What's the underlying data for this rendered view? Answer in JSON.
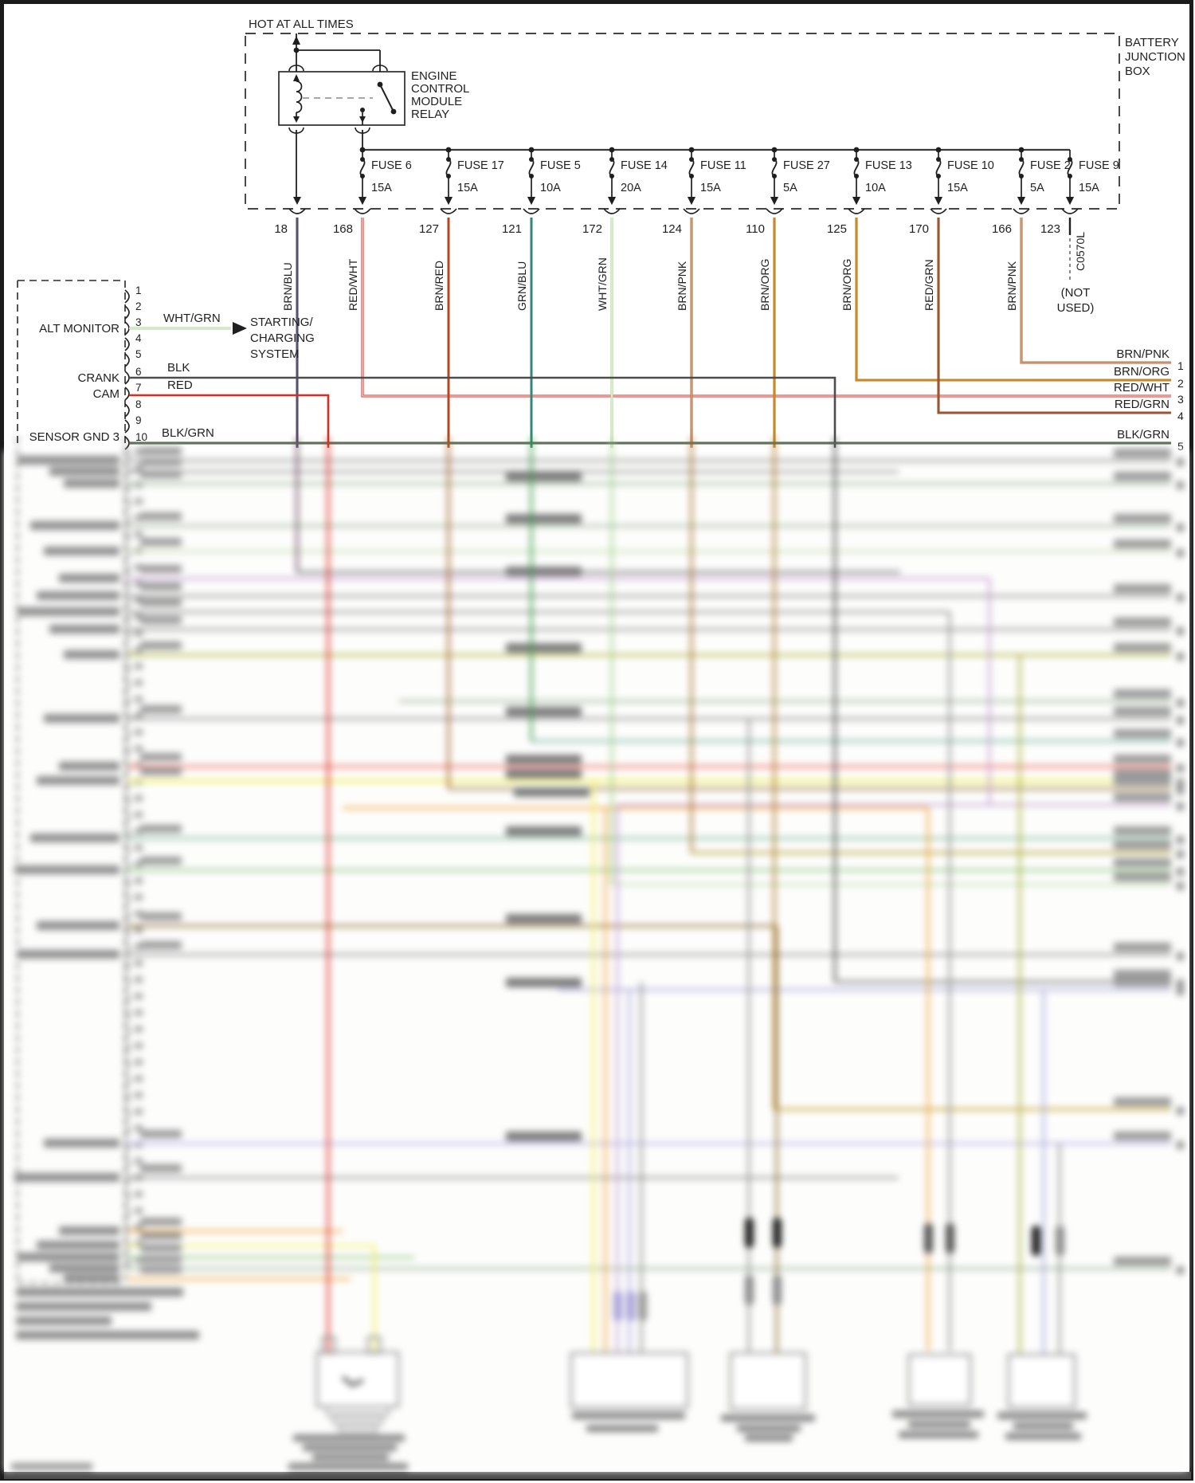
{
  "power_section": {
    "hot_label": "HOT AT ALL TIMES",
    "box_label_lines": [
      "BATTERY",
      "JUNCTION",
      "BOX"
    ],
    "relay_label_lines": [
      "ENGINE",
      "CONTROL",
      "MODULE",
      "RELAY"
    ]
  },
  "fuses": [
    {
      "name": "FUSE 6",
      "rating": "15A"
    },
    {
      "name": "FUSE 17",
      "rating": "15A"
    },
    {
      "name": "FUSE 5",
      "rating": "10A"
    },
    {
      "name": "FUSE 14",
      "rating": "20A"
    },
    {
      "name": "FUSE 11",
      "rating": "15A"
    },
    {
      "name": "FUSE 27",
      "rating": "5A"
    },
    {
      "name": "FUSE 13",
      "rating": "10A"
    },
    {
      "name": "FUSE 10",
      "rating": "15A"
    },
    {
      "name": "FUSE 2",
      "rating": "5A"
    },
    {
      "name": "FUSE 9",
      "rating": "15A"
    }
  ],
  "circuits": [
    {
      "number": "18",
      "color": "BRN/BLU"
    },
    {
      "number": "168",
      "color": "RED/WHT"
    },
    {
      "number": "127",
      "color": "BRN/RED"
    },
    {
      "number": "121",
      "color": "GRN/BLU"
    },
    {
      "number": "172",
      "color": "WHT/GRN"
    },
    {
      "number": "124",
      "color": "BRN/PNK"
    },
    {
      "number": "110",
      "color": "BRN/ORG"
    },
    {
      "number": "125",
      "color": "BRN/ORG"
    },
    {
      "number": "170",
      "color": "RED/GRN"
    },
    {
      "number": "166",
      "color": "BRN/PNK"
    },
    {
      "number": "123",
      "color": ""
    }
  ],
  "not_used": {
    "connector_id": "C0570L",
    "note_lines": [
      "(NOT",
      "USED)"
    ]
  },
  "ecm_connector": {
    "pin_numbers": [
      "1",
      "2",
      "3",
      "4",
      "5",
      "6",
      "7",
      "8",
      "9",
      "10"
    ],
    "pin_labels": {
      "3": "ALT MONITOR",
      "6": "CRANK",
      "7": "CAM",
      "10": "SENSOR GND 3"
    },
    "wire_colors": {
      "3": "WHT/GRN",
      "6": "BLK",
      "7": "RED",
      "10": "BLK/GRN"
    },
    "alt_monitor_target_lines": [
      "STARTING/",
      "CHARGING",
      "SYSTEM"
    ]
  },
  "right_pins": [
    {
      "color_label": "BRN/PNK",
      "pin": "1"
    },
    {
      "color_label": "BRN/ORG",
      "pin": "2"
    },
    {
      "color_label": "RED/WHT",
      "pin": "3"
    },
    {
      "color_label": "RED/GRN",
      "pin": "4"
    },
    {
      "color_label": "BLK/GRN",
      "pin": "5"
    }
  ],
  "palette": {
    "ink": "#1f1f1f",
    "bus_gray": "#3a3a3a",
    "brn_blu_base": "#6b4a5e",
    "brn_blu_stripe": "#3f5d8a",
    "red_wht_base": "#dd3227",
    "red_wht_stripe": "#ffffff",
    "brn_red_base": "#a8622a",
    "brn_red_stripe": "#d02a1e",
    "grn_blu_base": "#3f9e4d",
    "grn_blu_stripe": "#2b6fc2",
    "wht_grn_base": "#a9d391",
    "wht_grn_stripe": "#ffffff",
    "brn_pnk_base": "#aa7631",
    "brn_pnk_stripe": "#eba8b4",
    "brn_org_base": "#b07b2a",
    "brn_org_stripe": "#e8960f",
    "red_grn_base": "#d2352a",
    "red_grn_stripe": "#2f8f3f",
    "blk": "#4d4d4d",
    "red": "#df2b20",
    "blk_grn_base": "#4a4a4a",
    "blk_grn_stripe": "#69a45e"
  }
}
